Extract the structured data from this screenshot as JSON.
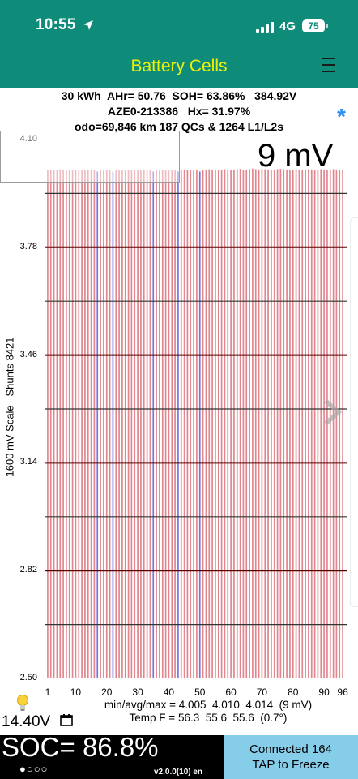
{
  "status_bar": {
    "time": "10:55",
    "network": "4G",
    "battery_level": "75"
  },
  "header": {
    "title": "Battery Cells",
    "menu_icon": "hamburger-menu-icon"
  },
  "summary": {
    "line1": "30 kWh  AHr= 50.76  SOH= 63.86%   384.92V",
    "line2": "AZE0-213386   Hx= 31.97%",
    "line3": "odo=69,846 km 187 QCs & 1264 L1/L2s",
    "star": "*"
  },
  "chart": {
    "scale_label": "9 mV",
    "y_axis_title": "1600 mV Scale   Shunts 8421"
  },
  "stats": {
    "voltage_line": "min/avg/max = 4.005  4.010  4.014  (9 mV)",
    "temp_line": "Temp F = 56.3  55.6  55.6  (0.7°)"
  },
  "footer": {
    "aux_voltage": "14.40V",
    "soc": "SOC= 86.8%",
    "page_dots": "●○○○",
    "version": "v2.0.0(10) en",
    "connection_line1": "Connected 164",
    "connection_line2": "TAP to Freeze"
  },
  "colors": {
    "header_bg": "#0f8c79",
    "title": "#e8f10a",
    "bar_red": "#e0868c",
    "bar_blue": "#7474e0",
    "connect_bg": "#86cdea"
  },
  "chart_data": {
    "type": "bar",
    "xlabel": "",
    "ylabel": "1600 mV Scale   Shunts 8421",
    "ylim": [
      2.5,
      4.1
    ],
    "y_ticks": [
      2.5,
      2.82,
      3.14,
      3.46,
      3.78,
      4.1
    ],
    "x_ticks": [
      1,
      10,
      20,
      30,
      40,
      50,
      60,
      70,
      80,
      90,
      96
    ],
    "categories": [
      1,
      2,
      3,
      4,
      5,
      6,
      7,
      8,
      9,
      10,
      11,
      12,
      13,
      14,
      15,
      16,
      17,
      18,
      19,
      20,
      21,
      22,
      23,
      24,
      25,
      26,
      27,
      28,
      29,
      30,
      31,
      32,
      33,
      34,
      35,
      36,
      37,
      38,
      39,
      40,
      41,
      42,
      43,
      44,
      45,
      46,
      47,
      48,
      49,
      50,
      51,
      52,
      53,
      54,
      55,
      56,
      57,
      58,
      59,
      60,
      61,
      62,
      63,
      64,
      65,
      66,
      67,
      68,
      69,
      70,
      71,
      72,
      73,
      74,
      75,
      76,
      77,
      78,
      79,
      80,
      81,
      82,
      83,
      84,
      85,
      86,
      87,
      88,
      89,
      90,
      91,
      92,
      93,
      94,
      95,
      96
    ],
    "values": [
      4.01,
      4.011,
      4.009,
      4.01,
      4.012,
      4.01,
      4.011,
      4.009,
      4.01,
      4.01,
      4.011,
      4.01,
      4.009,
      4.01,
      4.011,
      4.01,
      4.005,
      4.01,
      4.011,
      4.01,
      4.009,
      4.005,
      4.01,
      4.011,
      4.01,
      4.01,
      4.009,
      4.011,
      4.01,
      4.01,
      4.011,
      4.01,
      4.009,
      4.01,
      4.005,
      4.01,
      4.011,
      4.01,
      4.009,
      4.01,
      4.011,
      4.01,
      4.005,
      4.01,
      4.011,
      4.01,
      4.009,
      4.01,
      4.011,
      4.005,
      4.01,
      4.011,
      4.012,
      4.01,
      4.011,
      4.009,
      4.01,
      4.012,
      4.011,
      4.01,
      4.011,
      4.012,
      4.013,
      4.011,
      4.01,
      4.012,
      4.014,
      4.012,
      4.011,
      4.013,
      4.012,
      4.011,
      4.01,
      4.011,
      4.012,
      4.013,
      4.012,
      4.011,
      4.01,
      4.011,
      4.012,
      4.011,
      4.01,
      4.011,
      4.012,
      4.011,
      4.01,
      4.011,
      4.012,
      4.011,
      4.01,
      4.011,
      4.012,
      4.011,
      4.01,
      4.011
    ],
    "highlighted_cells": [
      17,
      22,
      35,
      43,
      50
    ]
  }
}
